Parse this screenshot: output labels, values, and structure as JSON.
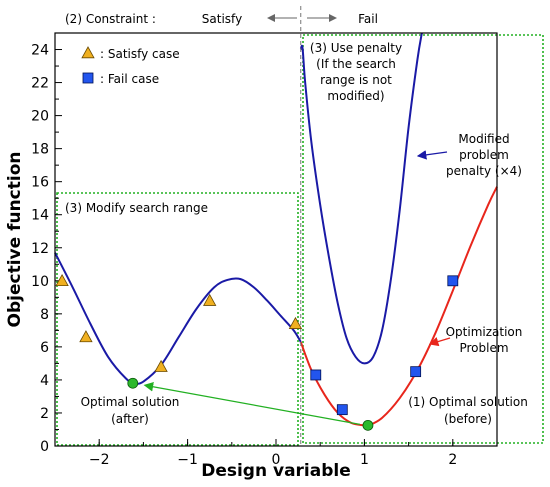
{
  "chart_data": {
    "type": "line",
    "xlabel": "Design variable",
    "ylabel": "Objective function",
    "xlim": [
      -2.5,
      2.5
    ],
    "ylim": [
      0,
      25
    ],
    "xticks": [
      "-2",
      "-1",
      "0",
      "1",
      "2"
    ],
    "yticks": [
      "0",
      "2",
      "4",
      "6",
      "8",
      "10",
      "12",
      "14",
      "16",
      "18",
      "20",
      "22",
      "24"
    ],
    "constraint_boundary_x": 0.28,
    "series": [
      {
        "color": "#1a1aa6",
        "x": [
          -2.5,
          -2.3,
          -2.1,
          -1.9,
          -1.7,
          -1.6,
          -1.5,
          -1.3,
          -1.1,
          -0.9,
          -0.7,
          -0.55,
          -0.4,
          -0.25,
          -0.1,
          0.05,
          0.2,
          0.28
        ],
        "y": [
          11.7,
          9.6,
          7.4,
          5.4,
          4.1,
          3.8,
          3.9,
          4.9,
          6.6,
          8.3,
          9.6,
          10.05,
          10.1,
          9.6,
          8.8,
          7.9,
          7.0,
          6.3
        ]
      },
      {
        "color": "#e8261c",
        "x": [
          0.28,
          0.4,
          0.55,
          0.7,
          0.85,
          1.0,
          1.05,
          1.2,
          1.4,
          1.6,
          1.8,
          2.0,
          2.2,
          2.4,
          2.5
        ],
        "y": [
          6.3,
          4.6,
          3.1,
          2.0,
          1.4,
          1.25,
          1.25,
          1.7,
          2.9,
          4.6,
          6.8,
          9.4,
          12.1,
          14.6,
          15.7
        ]
      },
      {
        "color": "#1a1aa6",
        "x": [
          0.28,
          0.3,
          0.33,
          0.4,
          0.5,
          0.6,
          0.7,
          0.8,
          0.9,
          1.0,
          1.1,
          1.2,
          1.3,
          1.4,
          1.5,
          1.6,
          1.65
        ],
        "y": [
          24.0,
          24.1,
          22.0,
          18.4,
          14.6,
          11.4,
          8.6,
          6.5,
          5.4,
          5.0,
          5.4,
          7.0,
          10.1,
          14.3,
          19.3,
          23.4,
          25.0
        ]
      }
    ],
    "markers": {
      "satisfy": [
        [
          -2.42,
          10.0
        ],
        [
          -2.15,
          6.6
        ],
        [
          -1.3,
          4.8
        ],
        [
          -0.75,
          8.8
        ],
        [
          0.22,
          7.4
        ]
      ],
      "fail": [
        [
          0.45,
          4.3
        ],
        [
          0.75,
          2.2
        ],
        [
          1.58,
          4.5
        ],
        [
          2.0,
          10.0
        ]
      ],
      "optimal": [
        [
          -1.62,
          3.8
        ],
        [
          1.04,
          1.25
        ]
      ]
    },
    "legend": [
      {
        "symbol": "triangle",
        "label": ": Satisfy case"
      },
      {
        "symbol": "square",
        "label": ": Fail case"
      }
    ],
    "annotations": {
      "constraint": "(2) Constraint :",
      "satisfy": "Satisfy",
      "fail": "Fail",
      "use_penalty": [
        "(3) Use penalty",
        "(If the search",
        "range is not",
        "modified)"
      ],
      "modified_problem": [
        "Modified",
        "problem",
        "penalty (×4)"
      ],
      "modify_range": "(3) Modify search range",
      "optimization_problem": [
        "Optimization",
        "Problem"
      ],
      "optimal_after": [
        "Optimal solution",
        "(after)"
      ],
      "optimal_before": [
        "(1) Optimal solution",
        "(before)"
      ]
    }
  }
}
